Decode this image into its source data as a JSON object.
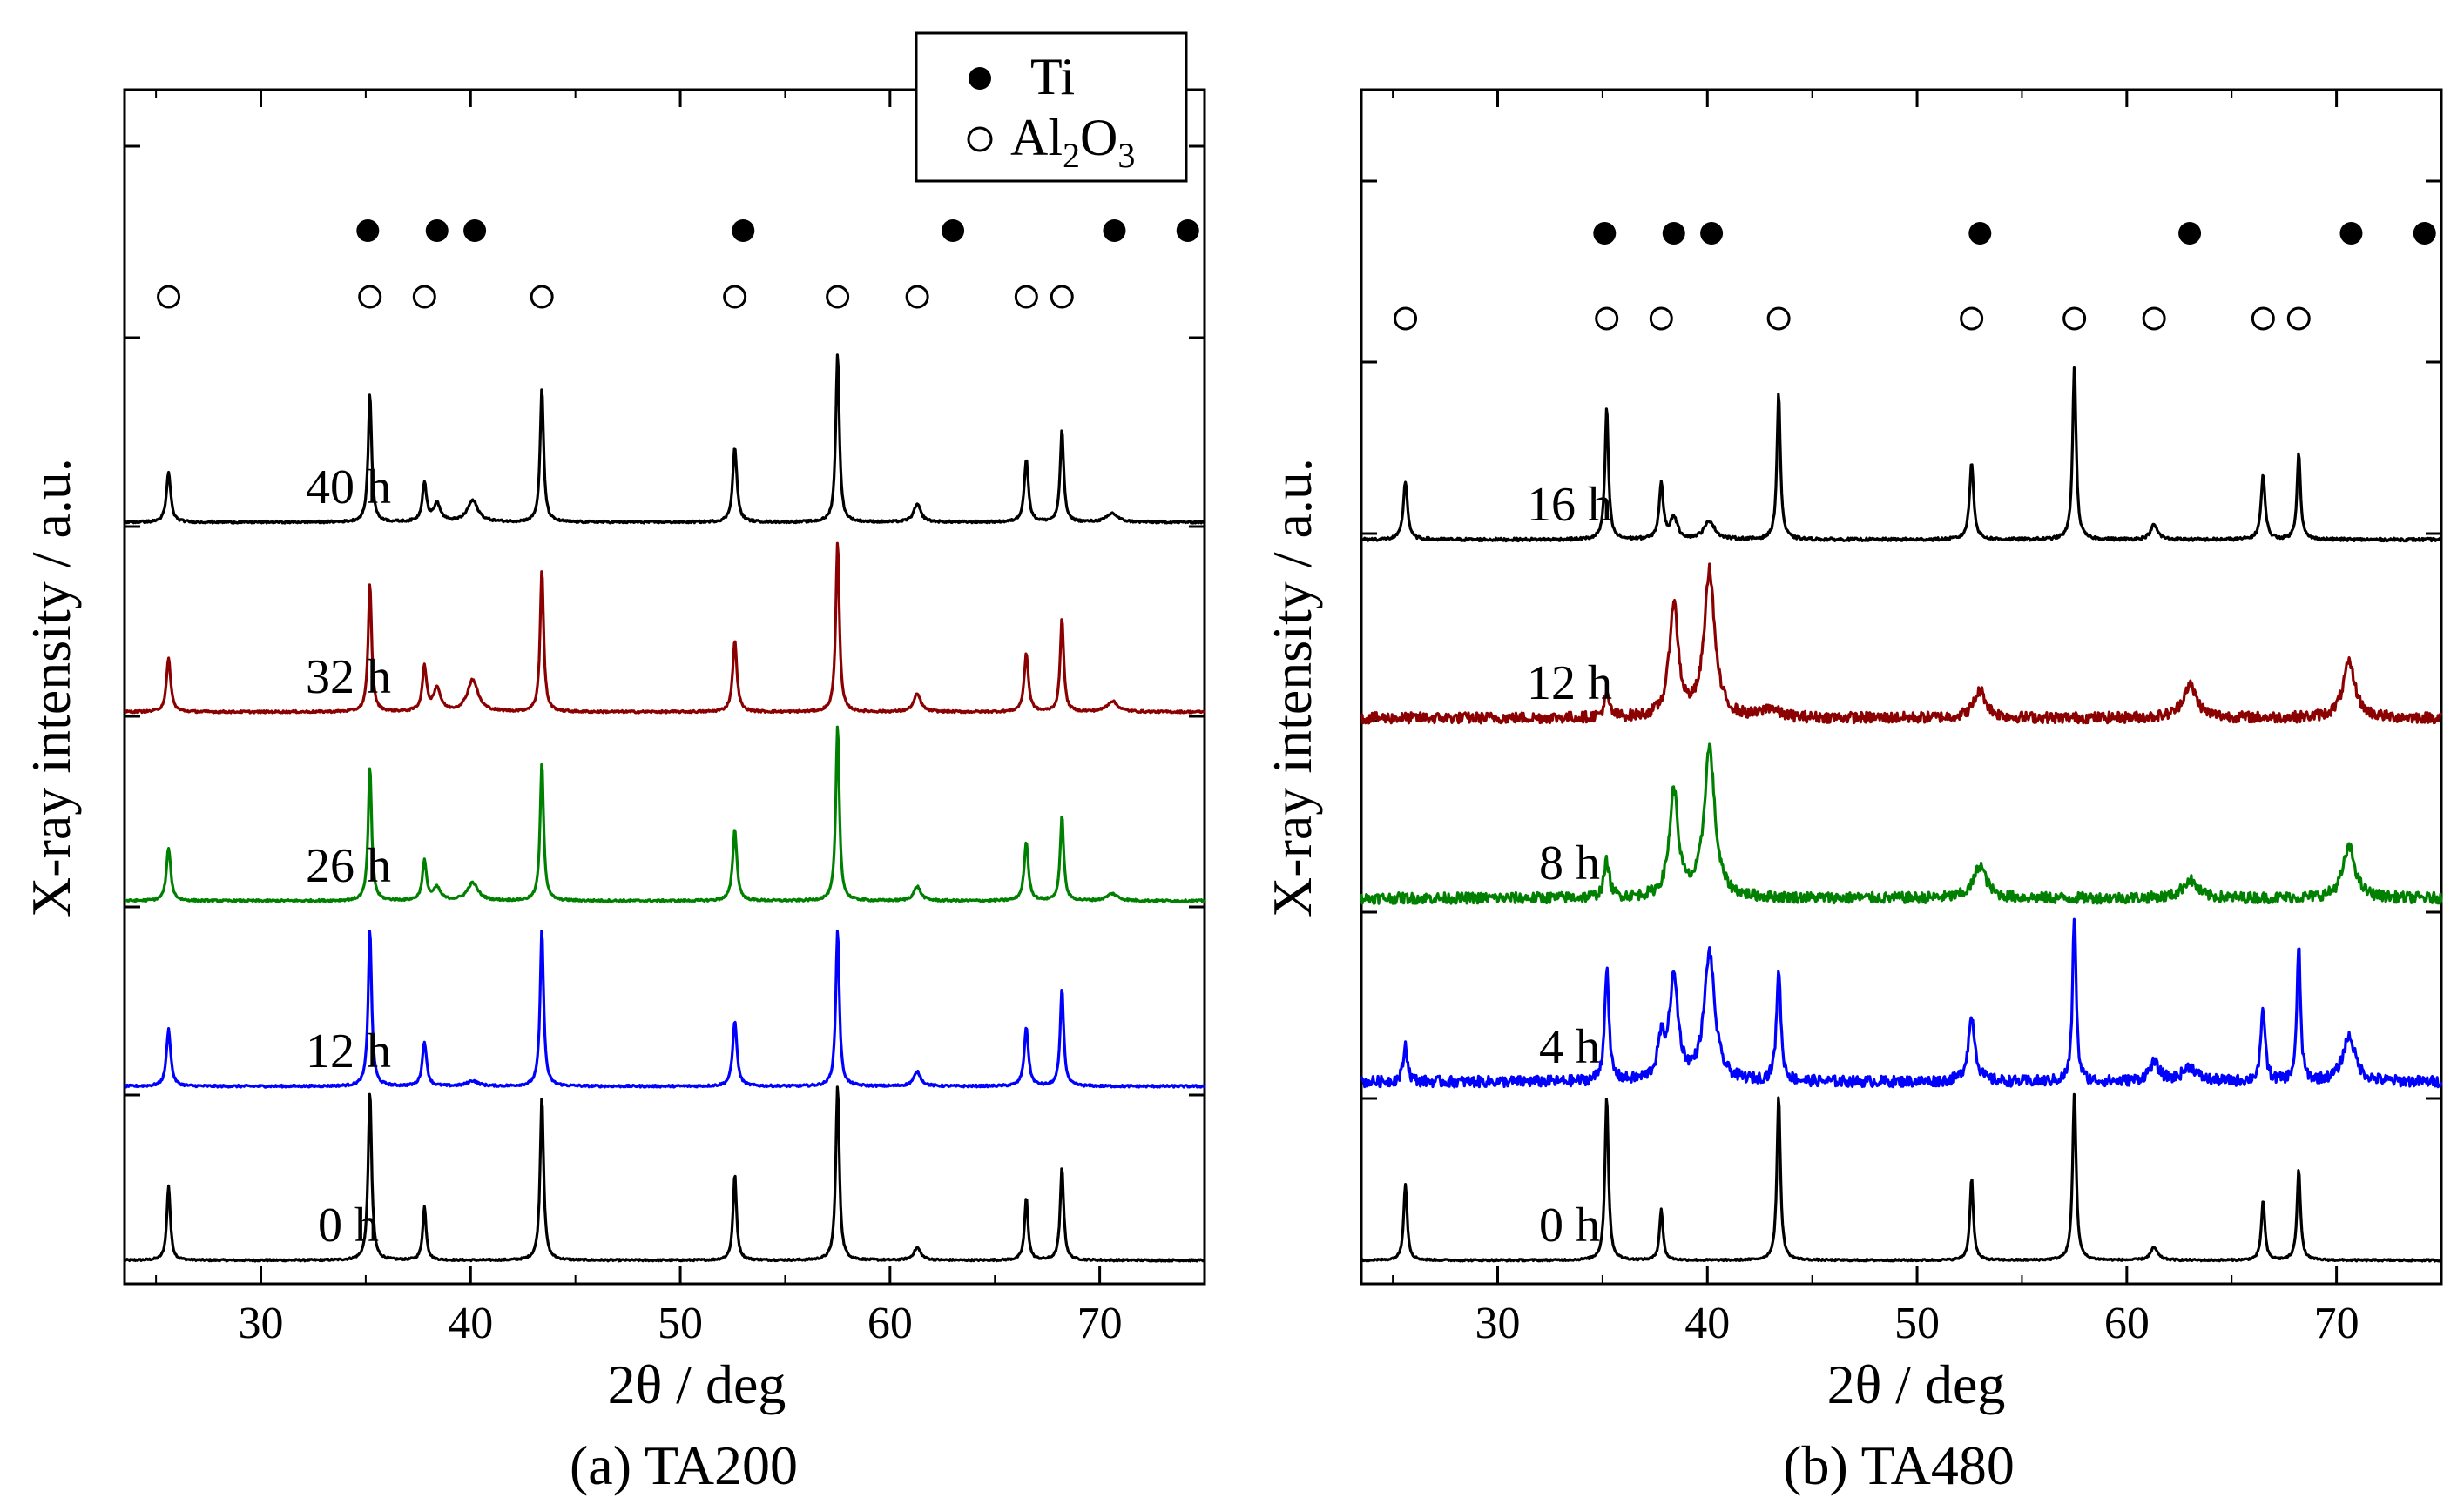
{
  "figure": {
    "legend": {
      "ti_label": "Ti",
      "al2o3_label_main": "Al",
      "al2o3_sub1": "2",
      "al2o3_mid": "O",
      "al2o3_sub2": "3",
      "ti_marker": "filled-circle",
      "al2o3_marker": "open-circle"
    },
    "ylabel": "X-ray intensity  / a.u.",
    "xlabel": "2θ  / deg"
  },
  "chart_data": [
    {
      "type": "line",
      "title": "(a) TA200",
      "xlabel": "2θ  / deg",
      "ylabel": "X-ray intensity  / a.u.",
      "xlim": [
        23.5,
        75
      ],
      "xticks": [
        30,
        40,
        50,
        60,
        70
      ],
      "grid": false,
      "ti_peaks": [
        35.1,
        38.4,
        40.2,
        53.0,
        63.0,
        70.7,
        74.2
      ],
      "al2o3_peaks": [
        25.6,
        35.2,
        37.8,
        43.4,
        52.6,
        57.5,
        61.3,
        66.5,
        68.2
      ],
      "series": [
        {
          "name": "0 h",
          "color": "#000000",
          "baseline": 0,
          "noise": 0.005,
          "peaks": [
            [
              25.6,
              0.42,
              0.1
            ],
            [
              35.2,
              0.95,
              0.1
            ],
            [
              37.8,
              0.3,
              0.1
            ],
            [
              43.4,
              0.92,
              0.1
            ],
            [
              52.6,
              0.48,
              0.1
            ],
            [
              57.5,
              0.98,
              0.1
            ],
            [
              61.3,
              0.07,
              0.2
            ],
            [
              66.5,
              0.35,
              0.1
            ],
            [
              68.2,
              0.52,
              0.1
            ]
          ]
        },
        {
          "name": "12 h",
          "color": "#0000ff",
          "baseline": 1,
          "noise": 0.006,
          "peaks": [
            [
              25.6,
              0.32,
              0.12
            ],
            [
              35.2,
              0.88,
              0.1
            ],
            [
              37.8,
              0.25,
              0.12
            ],
            [
              40.1,
              0.03,
              0.3
            ],
            [
              43.4,
              0.88,
              0.1
            ],
            [
              52.6,
              0.37,
              0.12
            ],
            [
              57.5,
              0.88,
              0.1
            ],
            [
              61.3,
              0.08,
              0.2
            ],
            [
              66.5,
              0.33,
              0.12
            ],
            [
              68.2,
              0.55,
              0.1
            ]
          ]
        },
        {
          "name": "26 h",
          "color": "#008000",
          "baseline": 2,
          "noise": 0.006,
          "peaks": [
            [
              25.6,
              0.3,
              0.12
            ],
            [
              35.2,
              0.75,
              0.1
            ],
            [
              37.8,
              0.22,
              0.12
            ],
            [
              38.4,
              0.07,
              0.2
            ],
            [
              40.1,
              0.1,
              0.3
            ],
            [
              43.4,
              0.78,
              0.1
            ],
            [
              52.6,
              0.4,
              0.12
            ],
            [
              57.5,
              0.98,
              0.1
            ],
            [
              61.3,
              0.08,
              0.2
            ],
            [
              66.5,
              0.33,
              0.12
            ],
            [
              68.2,
              0.48,
              0.1
            ],
            [
              70.6,
              0.04,
              0.3
            ]
          ]
        },
        {
          "name": "32 h",
          "color": "#8b0000",
          "baseline": 3,
          "noise": 0.006,
          "peaks": [
            [
              25.6,
              0.3,
              0.12
            ],
            [
              35.2,
              0.72,
              0.1
            ],
            [
              37.8,
              0.25,
              0.12
            ],
            [
              38.4,
              0.13,
              0.2
            ],
            [
              40.1,
              0.18,
              0.3
            ],
            [
              43.4,
              0.8,
              0.1
            ],
            [
              52.6,
              0.4,
              0.12
            ],
            [
              57.5,
              0.96,
              0.1
            ],
            [
              61.3,
              0.1,
              0.2
            ],
            [
              66.5,
              0.33,
              0.12
            ],
            [
              68.2,
              0.53,
              0.1
            ],
            [
              70.6,
              0.06,
              0.3
            ]
          ]
        },
        {
          "name": "40 h",
          "color": "#000000",
          "baseline": 4,
          "noise": 0.006,
          "peaks": [
            [
              25.6,
              0.28,
              0.12
            ],
            [
              35.2,
              0.72,
              0.1
            ],
            [
              37.8,
              0.22,
              0.12
            ],
            [
              38.4,
              0.1,
              0.2
            ],
            [
              40.1,
              0.12,
              0.3
            ],
            [
              43.4,
              0.75,
              0.1
            ],
            [
              52.6,
              0.42,
              0.12
            ],
            [
              57.5,
              0.95,
              0.1
            ],
            [
              61.3,
              0.1,
              0.2
            ],
            [
              66.5,
              0.35,
              0.12
            ],
            [
              68.2,
              0.52,
              0.1
            ],
            [
              70.6,
              0.05,
              0.3
            ]
          ]
        }
      ]
    },
    {
      "type": "line",
      "title": "(b) TA480",
      "xlabel": "2θ  / deg",
      "ylabel": "X-ray intensity  / a.u.",
      "xlim": [
        23.5,
        75
      ],
      "xticks": [
        30,
        40,
        50,
        60,
        70
      ],
      "grid": false,
      "ti_peaks": [
        35.1,
        38.4,
        40.2,
        53.0,
        63.0,
        70.7,
        74.2
      ],
      "al2o3_peaks": [
        25.6,
        35.2,
        37.8,
        43.4,
        52.6,
        57.5,
        61.3,
        66.5,
        68.2
      ],
      "series": [
        {
          "name": "0 h",
          "color": "#000000",
          "baseline": 0,
          "noise": 0.005,
          "peaks": [
            [
              25.6,
              0.42,
              0.1
            ],
            [
              35.2,
              0.9,
              0.1
            ],
            [
              37.8,
              0.28,
              0.1
            ],
            [
              43.4,
              0.9,
              0.1
            ],
            [
              52.6,
              0.45,
              0.1
            ],
            [
              57.5,
              0.92,
              0.1
            ],
            [
              61.3,
              0.07,
              0.2
            ],
            [
              66.5,
              0.33,
              0.1
            ],
            [
              68.2,
              0.5,
              0.1
            ]
          ]
        },
        {
          "name": "4 h",
          "color": "#0000ff",
          "baseline": 1,
          "noise": 0.03,
          "peaks": [
            [
              25.6,
              0.2,
              0.12
            ],
            [
              35.2,
              0.62,
              0.12
            ],
            [
              37.8,
              0.2,
              0.2
            ],
            [
              38.4,
              0.55,
              0.25
            ],
            [
              40.1,
              0.7,
              0.3
            ],
            [
              43.4,
              0.62,
              0.12
            ],
            [
              52.6,
              0.35,
              0.2
            ],
            [
              57.5,
              0.92,
              0.1
            ],
            [
              61.3,
              0.1,
              0.3
            ],
            [
              63.0,
              0.08,
              0.4
            ],
            [
              66.5,
              0.4,
              0.12
            ],
            [
              68.2,
              0.75,
              0.1
            ],
            [
              70.6,
              0.25,
              0.35
            ]
          ]
        },
        {
          "name": "8 h",
          "color": "#008000",
          "baseline": 2,
          "noise": 0.03,
          "peaks": [
            [
              35.2,
              0.2,
              0.15
            ],
            [
              38.4,
              0.58,
              0.25
            ],
            [
              40.1,
              0.82,
              0.3
            ],
            [
              53.0,
              0.18,
              0.35
            ],
            [
              63.0,
              0.1,
              0.4
            ],
            [
              70.6,
              0.28,
              0.35
            ]
          ]
        },
        {
          "name": "12 h",
          "color": "#8b0000",
          "baseline": 3,
          "noise": 0.03,
          "peaks": [
            [
              35.2,
              0.12,
              0.15
            ],
            [
              38.4,
              0.62,
              0.25
            ],
            [
              40.1,
              0.8,
              0.3
            ],
            [
              43.0,
              0.05,
              0.4
            ],
            [
              53.0,
              0.15,
              0.35
            ],
            [
              63.0,
              0.18,
              0.4
            ],
            [
              70.6,
              0.3,
              0.35
            ]
          ]
        },
        {
          "name": "16 h",
          "color": "#000000",
          "baseline": 4,
          "noise": 0.008,
          "peaks": [
            [
              25.6,
              0.32,
              0.12
            ],
            [
              35.2,
              0.72,
              0.1
            ],
            [
              37.8,
              0.3,
              0.12
            ],
            [
              38.4,
              0.12,
              0.2
            ],
            [
              40.1,
              0.1,
              0.3
            ],
            [
              43.4,
              0.8,
              0.1
            ],
            [
              52.6,
              0.42,
              0.12
            ],
            [
              57.5,
              0.95,
              0.1
            ],
            [
              61.3,
              0.08,
              0.2
            ],
            [
              66.5,
              0.35,
              0.12
            ],
            [
              68.2,
              0.48,
              0.1
            ]
          ]
        }
      ]
    }
  ]
}
